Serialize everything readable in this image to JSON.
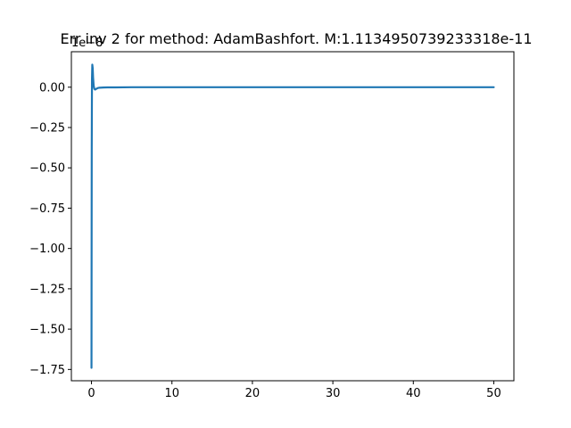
{
  "chart_data": {
    "type": "line",
    "title": "Err inv 2 for method: AdamBashfort. M:1.1134950739233318e-11",
    "xlabel": "",
    "ylabel": "",
    "y_offset_label": "1e−8",
    "xlim": [
      -2.5,
      52.5
    ],
    "ylim": [
      -1.82,
      0.22
    ],
    "x_ticks": [
      0,
      10,
      20,
      30,
      40,
      50
    ],
    "x_tick_labels": [
      "0",
      "10",
      "20",
      "30",
      "40",
      "50"
    ],
    "y_ticks": [
      0.0,
      -0.25,
      -0.5,
      -0.75,
      -1.0,
      -1.25,
      -1.5,
      -1.75
    ],
    "y_tick_labels": [
      "0.00",
      "−0.25",
      "−0.50",
      "−0.75",
      "−1.00",
      "−1.25",
      "−1.50",
      "−1.75"
    ],
    "grid": false,
    "series": [
      {
        "color": "#1f77b4",
        "x": [
          0,
          0.01,
          0.03,
          0.06,
          0.1,
          0.15,
          0.2,
          0.27,
          0.35,
          0.45,
          0.6,
          0.8,
          1.0,
          1.5,
          2.0,
          3,
          5,
          8,
          10,
          20,
          30,
          40,
          50
        ],
        "y": [
          -1.74,
          -1.2,
          -0.4,
          0.05,
          0.14,
          0.12,
          0.06,
          0.01,
          -0.01,
          -0.015,
          -0.01,
          -0.005,
          -0.003,
          -0.002,
          -0.001,
          -0.001,
          0.0,
          0.0,
          0.0,
          0.0,
          0.0,
          0.0,
          0.0
        ]
      }
    ]
  }
}
